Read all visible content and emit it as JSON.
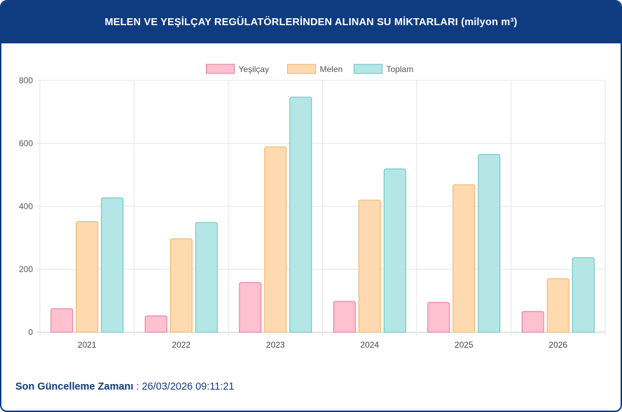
{
  "header": {
    "title": "MELEN VE YEŞİLÇAY REGÜLATÖRLERİNDEN ALINAN SU MİKTARLARI (milyon m³)"
  },
  "chart_data": {
    "type": "bar",
    "title": "MELEN VE YEŞİLÇAY REGÜLATÖRLERİNDEN ALINAN SU MİKTARLARI (milyon m³)",
    "categories": [
      "2021",
      "2022",
      "2023",
      "2024",
      "2025",
      "2026"
    ],
    "series": [
      {
        "name": "Yeşilçay",
        "values": [
          75,
          52,
          158,
          98,
          95,
          66
        ],
        "fill": "#ffc0d0",
        "stroke": "#e0709a"
      },
      {
        "name": "Melen",
        "values": [
          352,
          297,
          589,
          420,
          469,
          170
        ],
        "fill": "#ffdab0",
        "stroke": "#f0b060"
      },
      {
        "name": "Toplam",
        "values": [
          427,
          349,
          747,
          519,
          565,
          237
        ],
        "fill": "#b5e6e6",
        "stroke": "#60c0c0"
      }
    ],
    "yticks": [
      0,
      200,
      400,
      600,
      800
    ],
    "ylim": [
      0,
      800
    ],
    "grid": true,
    "legend": "top-center"
  },
  "footer": {
    "label": "Son Güncelleme Zamanı",
    "separator": " : ",
    "value": "26/03/2026 09:11:21"
  }
}
